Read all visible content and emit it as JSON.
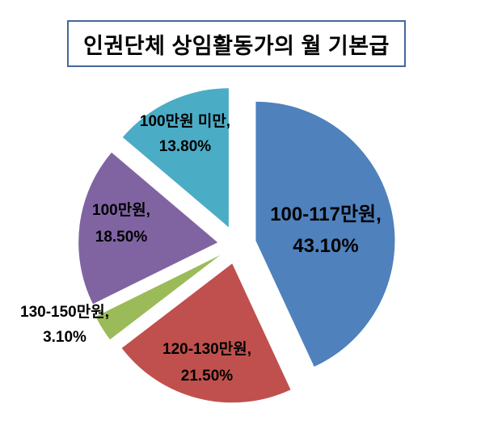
{
  "chart_data": {
    "type": "pie",
    "title": "인권단체 상임활동가의 월 기본급",
    "legend": "none",
    "style": "exploded-pie, data labels inside slices as 'category, percent'",
    "categories": [
      "100-117만원",
      "120-130만원",
      "130-150만원",
      "100만원",
      "100만원 미만"
    ],
    "values": [
      43.1,
      21.5,
      3.1,
      18.5,
      13.8
    ],
    "slices": [
      {
        "category": "100-117만원",
        "value": 43.1,
        "label_line1": "100-117만원,",
        "label_line2": "43.10%",
        "color": "#4f81bd"
      },
      {
        "category": "120-130만원",
        "value": 21.5,
        "label_line1": "120-130만원,",
        "label_line2": "21.50%",
        "color": "#c0504d"
      },
      {
        "category": "130-150만원",
        "value": 3.1,
        "label_line1": "130-150만원,",
        "label_line2": "3.10%",
        "color": "#9bbb59"
      },
      {
        "category": "100만원",
        "value": 18.5,
        "label_line1": "100만원,",
        "label_line2": "18.50%",
        "color": "#8064a2"
      },
      {
        "category": "100만원 미만",
        "value": 13.8,
        "label_line1": "100만원 미만,",
        "label_line2": "13.80%",
        "color": "#4bacc6"
      }
    ],
    "colors": {
      "background": "#ffffff",
      "title_border": "#44679a",
      "label_text": "#000000"
    }
  }
}
